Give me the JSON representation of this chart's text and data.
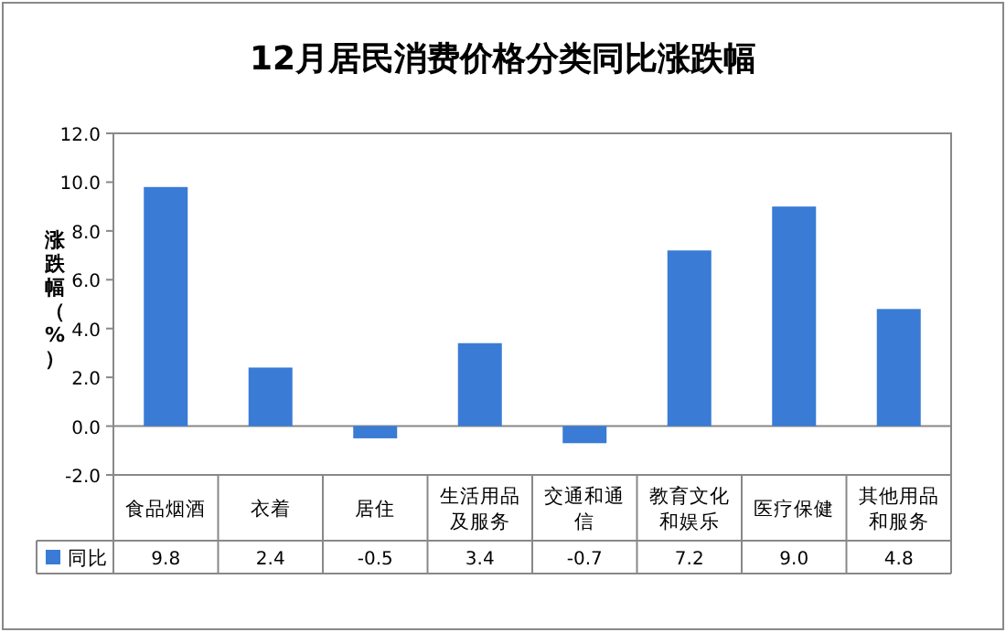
{
  "chart_data": {
    "type": "bar",
    "title": "12月居民消费价格分类同比涨跌幅",
    "ylabel": "涨跌幅（%）",
    "categories": [
      "食品烟酒",
      "衣着",
      "居住",
      "生活用品及服务",
      "交通和通信",
      "教育文化和娱乐",
      "医疗保健",
      "其他用品和服务"
    ],
    "series": [
      {
        "name": "同比",
        "color": "#3a7bd5",
        "values": [
          9.8,
          2.4,
          -0.5,
          3.4,
          -0.7,
          7.2,
          9.0,
          4.8
        ],
        "value_labels": [
          "9.8",
          "2.4",
          "-0.5",
          "3.4",
          "-0.7",
          "7.2",
          "9.0",
          "4.8"
        ]
      }
    ],
    "ylim": [
      -2,
      12
    ],
    "yticks": [
      {
        "value": -2,
        "label": "-2.0"
      },
      {
        "value": 0,
        "label": "0.0"
      },
      {
        "value": 2,
        "label": "2.0"
      },
      {
        "value": 4,
        "label": "4.0"
      },
      {
        "value": 6,
        "label": "6.0"
      },
      {
        "value": 8,
        "label": "8.0"
      },
      {
        "value": 10,
        "label": "10.0"
      },
      {
        "value": 12,
        "label": "12.0"
      }
    ],
    "legend": "bottom"
  }
}
